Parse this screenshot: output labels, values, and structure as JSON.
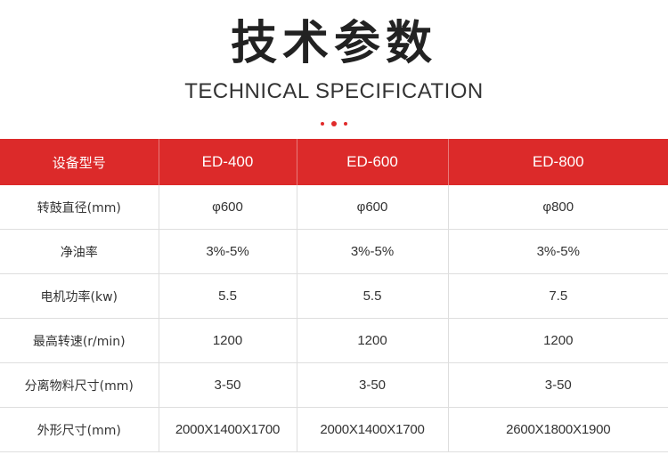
{
  "title_zh": "技术参数",
  "title_en": "TECHNICAL SPECIFICATION",
  "accent_color": "#dc2a2a",
  "table": {
    "headers": [
      "设备型号",
      "ED-400",
      "ED-600",
      "ED-800"
    ],
    "rows": [
      [
        "转鼓直径(mm)",
        "φ600",
        "φ600",
        "φ800"
      ],
      [
        "净油率",
        "3%-5%",
        "3%-5%",
        "3%-5%"
      ],
      [
        "电机功率(kw)",
        "5.5",
        "5.5",
        "7.5"
      ],
      [
        "最高转速(r/min)",
        "1200",
        "1200",
        "1200"
      ],
      [
        "分离物料尺寸(mm)",
        "3-50",
        "3-50",
        "3-50"
      ],
      [
        "外形尺寸(mm)",
        "2000X1400X1700",
        "2000X1400X1700",
        "2600X1800X1900"
      ]
    ]
  }
}
